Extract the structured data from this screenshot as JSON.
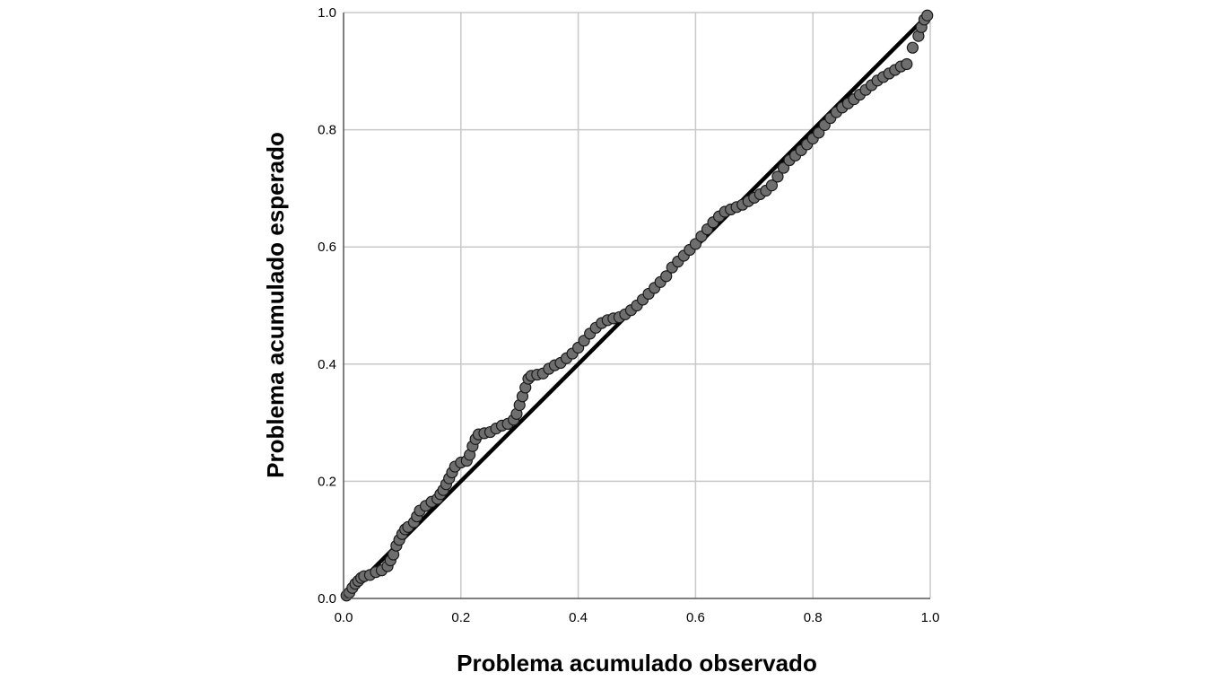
{
  "chart_data": {
    "type": "scatter",
    "title": "",
    "xlabel": "Problema acumulado observado",
    "ylabel": "Problema acumulado esperado",
    "xlim": [
      0,
      1
    ],
    "ylim": [
      0,
      1
    ],
    "x_ticks": [
      "0.0",
      "0.2",
      "0.4",
      "0.6",
      "0.8",
      "1.0"
    ],
    "y_ticks": [
      "0.0",
      "0.2",
      "0.4",
      "0.6",
      "0.8",
      "1.0"
    ],
    "grid": true,
    "legend": "none",
    "reference_line": {
      "from": [
        0,
        0
      ],
      "to": [
        1,
        1
      ],
      "color": "#000000"
    },
    "point_color": "#6e6e6e",
    "point_edge_color": "#1a1a1a",
    "series": [
      {
        "points": [
          [
            0.005,
            0.005
          ],
          [
            0.01,
            0.01
          ],
          [
            0.015,
            0.018
          ],
          [
            0.02,
            0.025
          ],
          [
            0.025,
            0.03
          ],
          [
            0.03,
            0.035
          ],
          [
            0.035,
            0.038
          ],
          [
            0.045,
            0.04
          ],
          [
            0.055,
            0.045
          ],
          [
            0.065,
            0.048
          ],
          [
            0.075,
            0.055
          ],
          [
            0.08,
            0.065
          ],
          [
            0.085,
            0.075
          ],
          [
            0.09,
            0.09
          ],
          [
            0.095,
            0.1
          ],
          [
            0.1,
            0.11
          ],
          [
            0.105,
            0.118
          ],
          [
            0.11,
            0.122
          ],
          [
            0.12,
            0.13
          ],
          [
            0.125,
            0.14
          ],
          [
            0.13,
            0.15
          ],
          [
            0.14,
            0.158
          ],
          [
            0.15,
            0.165
          ],
          [
            0.16,
            0.17
          ],
          [
            0.165,
            0.178
          ],
          [
            0.17,
            0.185
          ],
          [
            0.175,
            0.195
          ],
          [
            0.18,
            0.205
          ],
          [
            0.185,
            0.215
          ],
          [
            0.19,
            0.225
          ],
          [
            0.2,
            0.232
          ],
          [
            0.21,
            0.235
          ],
          [
            0.215,
            0.245
          ],
          [
            0.22,
            0.26
          ],
          [
            0.225,
            0.272
          ],
          [
            0.23,
            0.28
          ],
          [
            0.24,
            0.282
          ],
          [
            0.25,
            0.284
          ],
          [
            0.26,
            0.29
          ],
          [
            0.27,
            0.295
          ],
          [
            0.28,
            0.298
          ],
          [
            0.29,
            0.305
          ],
          [
            0.295,
            0.315
          ],
          [
            0.3,
            0.33
          ],
          [
            0.305,
            0.345
          ],
          [
            0.31,
            0.36
          ],
          [
            0.315,
            0.375
          ],
          [
            0.32,
            0.38
          ],
          [
            0.33,
            0.382
          ],
          [
            0.34,
            0.384
          ],
          [
            0.35,
            0.392
          ],
          [
            0.36,
            0.398
          ],
          [
            0.37,
            0.402
          ],
          [
            0.38,
            0.41
          ],
          [
            0.39,
            0.418
          ],
          [
            0.4,
            0.428
          ],
          [
            0.41,
            0.44
          ],
          [
            0.42,
            0.452
          ],
          [
            0.43,
            0.462
          ],
          [
            0.44,
            0.47
          ],
          [
            0.45,
            0.475
          ],
          [
            0.46,
            0.478
          ],
          [
            0.47,
            0.48
          ],
          [
            0.48,
            0.485
          ],
          [
            0.49,
            0.492
          ],
          [
            0.5,
            0.5
          ],
          [
            0.51,
            0.51
          ],
          [
            0.52,
            0.52
          ],
          [
            0.53,
            0.53
          ],
          [
            0.54,
            0.54
          ],
          [
            0.55,
            0.55
          ],
          [
            0.56,
            0.565
          ],
          [
            0.57,
            0.575
          ],
          [
            0.58,
            0.585
          ],
          [
            0.59,
            0.595
          ],
          [
            0.6,
            0.605
          ],
          [
            0.61,
            0.618
          ],
          [
            0.62,
            0.63
          ],
          [
            0.63,
            0.642
          ],
          [
            0.64,
            0.652
          ],
          [
            0.65,
            0.66
          ],
          [
            0.66,
            0.664
          ],
          [
            0.67,
            0.668
          ],
          [
            0.68,
            0.672
          ],
          [
            0.69,
            0.678
          ],
          [
            0.7,
            0.684
          ],
          [
            0.71,
            0.69
          ],
          [
            0.72,
            0.696
          ],
          [
            0.73,
            0.705
          ],
          [
            0.74,
            0.72
          ],
          [
            0.75,
            0.735
          ],
          [
            0.76,
            0.748
          ],
          [
            0.77,
            0.756
          ],
          [
            0.78,
            0.765
          ],
          [
            0.79,
            0.775
          ],
          [
            0.8,
            0.785
          ],
          [
            0.81,
            0.795
          ],
          [
            0.82,
            0.808
          ],
          [
            0.83,
            0.82
          ],
          [
            0.84,
            0.83
          ],
          [
            0.85,
            0.838
          ],
          [
            0.86,
            0.845
          ],
          [
            0.87,
            0.852
          ],
          [
            0.88,
            0.86
          ],
          [
            0.89,
            0.868
          ],
          [
            0.9,
            0.876
          ],
          [
            0.91,
            0.884
          ],
          [
            0.92,
            0.89
          ],
          [
            0.93,
            0.896
          ],
          [
            0.94,
            0.902
          ],
          [
            0.95,
            0.908
          ],
          [
            0.96,
            0.912
          ],
          [
            0.97,
            0.94
          ],
          [
            0.98,
            0.96
          ],
          [
            0.985,
            0.975
          ],
          [
            0.99,
            0.988
          ],
          [
            0.995,
            0.995
          ]
        ]
      }
    ]
  }
}
